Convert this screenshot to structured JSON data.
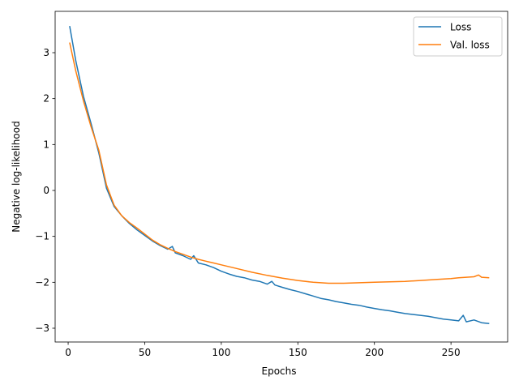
{
  "chart_data": {
    "type": "line",
    "title": "",
    "xlabel": "Epochs",
    "ylabel": "Negative log-likelihood",
    "xlim": [
      -8.5,
      287
    ],
    "ylim": [
      -3.3,
      3.9
    ],
    "x_ticks": [
      0,
      50,
      100,
      150,
      200,
      250
    ],
    "y_ticks": [
      -3,
      -2,
      -1,
      0,
      1,
      2,
      3
    ],
    "grid": false,
    "legend_position": "top-right",
    "series": [
      {
        "name": "Loss",
        "color": "#1f77b4",
        "x": [
          1,
          5,
          10,
          15,
          20,
          25,
          30,
          35,
          40,
          45,
          50,
          55,
          60,
          65,
          68,
          70,
          75,
          80,
          82,
          85,
          90,
          95,
          100,
          105,
          110,
          115,
          120,
          125,
          130,
          133,
          135,
          140,
          145,
          150,
          155,
          160,
          165,
          170,
          175,
          180,
          185,
          190,
          195,
          200,
          205,
          210,
          215,
          220,
          225,
          230,
          235,
          240,
          245,
          250,
          255,
          258,
          260,
          265,
          270,
          275
        ],
        "y": [
          3.58,
          2.82,
          2.05,
          1.45,
          0.82,
          0.05,
          -0.35,
          -0.55,
          -0.72,
          -0.86,
          -0.98,
          -1.1,
          -1.2,
          -1.28,
          -1.22,
          -1.36,
          -1.42,
          -1.5,
          -1.42,
          -1.58,
          -1.62,
          -1.68,
          -1.76,
          -1.82,
          -1.87,
          -1.9,
          -1.95,
          -1.98,
          -2.04,
          -1.98,
          -2.06,
          -2.11,
          -2.16,
          -2.2,
          -2.25,
          -2.3,
          -2.35,
          -2.38,
          -2.42,
          -2.45,
          -2.48,
          -2.5,
          -2.54,
          -2.57,
          -2.6,
          -2.62,
          -2.65,
          -2.68,
          -2.7,
          -2.72,
          -2.74,
          -2.77,
          -2.8,
          -2.82,
          -2.84,
          -2.72,
          -2.86,
          -2.82,
          -2.88,
          -2.9
        ]
      },
      {
        "name": "Val. loss",
        "color": "#ff7f0e",
        "x": [
          1,
          5,
          10,
          15,
          20,
          25,
          30,
          35,
          40,
          45,
          50,
          55,
          60,
          65,
          70,
          75,
          80,
          85,
          90,
          95,
          100,
          110,
          120,
          130,
          140,
          150,
          160,
          170,
          180,
          190,
          200,
          210,
          220,
          230,
          240,
          250,
          255,
          260,
          265,
          268,
          270,
          275
        ],
        "y": [
          3.22,
          2.6,
          1.95,
          1.38,
          0.88,
          0.12,
          -0.32,
          -0.55,
          -0.7,
          -0.82,
          -0.95,
          -1.08,
          -1.18,
          -1.26,
          -1.33,
          -1.39,
          -1.45,
          -1.5,
          -1.54,
          -1.58,
          -1.62,
          -1.7,
          -1.78,
          -1.85,
          -1.91,
          -1.96,
          -2.0,
          -2.02,
          -2.02,
          -2.01,
          -2.0,
          -1.99,
          -1.98,
          -1.96,
          -1.94,
          -1.92,
          -1.9,
          -1.89,
          -1.88,
          -1.84,
          -1.89,
          -1.9
        ]
      }
    ]
  }
}
